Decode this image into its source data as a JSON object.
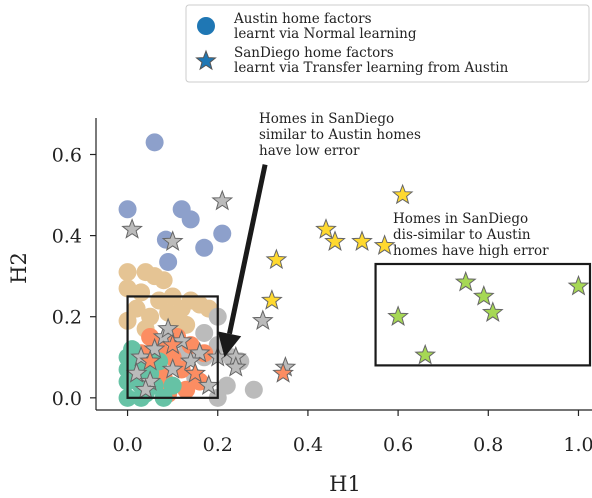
{
  "chart_data": {
    "type": "scatter",
    "xlabel": "H1",
    "ylabel": "H2",
    "xlim": [
      -0.07,
      1.03
    ],
    "ylim": [
      -0.03,
      0.69
    ],
    "x_ticks": [
      "0.0",
      "0.2",
      "0.4",
      "0.6",
      "0.8",
      "1.0"
    ],
    "y_ticks": [
      "0.0",
      "0.2",
      "0.4",
      "0.6"
    ],
    "grid": false,
    "legend": {
      "position": "top-right",
      "entries": [
        {
          "marker": "circle",
          "color": "#1f77b4",
          "line1": "Austin home factors",
          "line2": "learnt via Normal learning"
        },
        {
          "marker": "star",
          "color": "#1f77b4",
          "line1": "SanDiego home factors",
          "line2": "learnt via Transfer learning from Austin"
        }
      ]
    },
    "annotations": {
      "similar": [
        "Homes in SanDiego",
        "similar to Austin homes",
        "have low error"
      ],
      "dissimilar": [
        "Homes in SanDiego",
        "dis-similar to Austin",
        "homes have high error"
      ]
    },
    "boxes": [
      {
        "name": "similar-region",
        "x": [
          0.0,
          0.2
        ],
        "y": [
          0.0,
          0.25
        ]
      },
      {
        "name": "dissimilar-region",
        "x": [
          0.55,
          1.03
        ],
        "y": [
          0.08,
          0.33
        ]
      }
    ],
    "arrow": {
      "from": [
        0.305,
        0.575
      ],
      "to": [
        0.215,
        0.1
      ]
    },
    "colors": {
      "blue": "#8da0cb",
      "tan": "#e5c494",
      "grey": "#bbbbbb",
      "orange": "#fc8d62",
      "green": "#66c2a5",
      "yellow": "#ffd92f",
      "lime": "#a6d854"
    },
    "series": [
      {
        "marker": "circle",
        "color_key": "blue",
        "points": [
          [
            0.06,
            0.63
          ],
          [
            0.0,
            0.465
          ],
          [
            0.085,
            0.39
          ],
          [
            0.12,
            0.465
          ],
          [
            0.14,
            0.44
          ],
          [
            0.17,
            0.37
          ],
          [
            0.21,
            0.405
          ],
          [
            0.09,
            0.335
          ]
        ]
      },
      {
        "marker": "circle",
        "color_key": "tan",
        "points": [
          [
            0.0,
            0.31
          ],
          [
            0.0,
            0.27
          ],
          [
            0.04,
            0.31
          ],
          [
            0.06,
            0.3
          ],
          [
            0.08,
            0.29
          ],
          [
            0.03,
            0.26
          ],
          [
            0.07,
            0.24
          ],
          [
            0.1,
            0.25
          ],
          [
            0.12,
            0.22
          ],
          [
            0.14,
            0.24
          ],
          [
            0.16,
            0.23
          ],
          [
            0.18,
            0.22
          ],
          [
            0.02,
            0.22
          ],
          [
            0.05,
            0.2
          ],
          [
            0.09,
            0.21
          ],
          [
            0.0,
            0.19
          ],
          [
            0.04,
            0.17
          ],
          [
            0.11,
            0.19
          ],
          [
            0.13,
            0.18
          ]
        ]
      },
      {
        "marker": "circle",
        "color_key": "grey",
        "points": [
          [
            0.2,
            0.2
          ],
          [
            0.17,
            0.16
          ],
          [
            0.2,
            0.13
          ],
          [
            0.23,
            0.1
          ],
          [
            0.17,
            0.1
          ],
          [
            0.22,
            0.03
          ],
          [
            0.2,
            0.0
          ],
          [
            0.28,
            0.02
          ],
          [
            0.13,
            0.11
          ],
          [
            0.15,
            0.05
          ],
          [
            0.25,
            0.09
          ]
        ]
      },
      {
        "marker": "circle",
        "color_key": "orange",
        "points": [
          [
            0.05,
            0.15
          ],
          [
            0.07,
            0.12
          ],
          [
            0.1,
            0.1
          ],
          [
            0.14,
            0.13
          ],
          [
            0.12,
            0.07
          ],
          [
            0.08,
            0.05
          ],
          [
            0.16,
            0.04
          ],
          [
            0.13,
            0.02
          ],
          [
            0.09,
            0.01
          ],
          [
            0.17,
            0.11
          ],
          [
            0.11,
            0.15
          ],
          [
            0.06,
            0.08
          ],
          [
            0.03,
            0.11
          ]
        ]
      },
      {
        "marker": "circle",
        "color_key": "green",
        "points": [
          [
            0.0,
            0.1
          ],
          [
            0.0,
            0.07
          ],
          [
            0.0,
            0.04
          ],
          [
            0.0,
            0.0
          ],
          [
            0.02,
            0.08
          ],
          [
            0.03,
            0.03
          ],
          [
            0.01,
            0.12
          ],
          [
            0.04,
            0.01
          ],
          [
            0.06,
            0.03
          ],
          [
            0.05,
            0.06
          ],
          [
            0.08,
            0.0
          ],
          [
            0.02,
            0.05
          ],
          [
            0.07,
            0.09
          ],
          [
            0.1,
            0.03
          ],
          [
            0.03,
            0.0
          ]
        ]
      },
      {
        "marker": "star",
        "color_key": "grey",
        "points": [
          [
            0.21,
            0.485
          ],
          [
            0.01,
            0.415
          ],
          [
            0.1,
            0.385
          ],
          [
            0.3,
            0.19
          ],
          [
            0.35,
            0.075
          ],
          [
            0.24,
            0.1
          ],
          [
            0.24,
            0.075
          ],
          [
            0.2,
            0.1
          ],
          [
            0.16,
            0.11
          ],
          [
            0.08,
            0.15
          ],
          [
            0.06,
            0.12
          ],
          [
            0.03,
            0.1
          ],
          [
            0.12,
            0.14
          ],
          [
            0.02,
            0.06
          ],
          [
            0.05,
            0.04
          ],
          [
            0.1,
            0.07
          ],
          [
            0.14,
            0.09
          ],
          [
            0.18,
            0.03
          ],
          [
            0.09,
            0.17
          ],
          [
            0.04,
            0.02
          ]
        ]
      },
      {
        "marker": "star",
        "color_key": "orange",
        "points": [
          [
            0.345,
            0.06
          ],
          [
            0.1,
            0.13
          ],
          [
            0.05,
            0.09
          ],
          [
            0.15,
            0.06
          ]
        ]
      },
      {
        "marker": "star",
        "color_key": "yellow",
        "points": [
          [
            0.61,
            0.5
          ],
          [
            0.44,
            0.415
          ],
          [
            0.46,
            0.385
          ],
          [
            0.52,
            0.385
          ],
          [
            0.57,
            0.375
          ],
          [
            0.33,
            0.34
          ],
          [
            0.32,
            0.24
          ]
        ]
      },
      {
        "marker": "star",
        "color_key": "lime",
        "points": [
          [
            0.6,
            0.2
          ],
          [
            0.75,
            0.285
          ],
          [
            0.79,
            0.25
          ],
          [
            0.81,
            0.21
          ],
          [
            1.0,
            0.275
          ],
          [
            0.66,
            0.105
          ]
        ]
      }
    ]
  }
}
